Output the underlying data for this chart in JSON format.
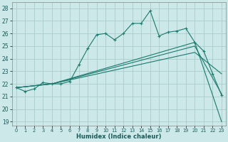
{
  "title": "",
  "xlabel": "Humidex (Indice chaleur)",
  "bg_color": "#cce8e8",
  "grid_color": "#aacccc",
  "line_color": "#1a7a6e",
  "xlim": [
    -0.5,
    23.5
  ],
  "ylim": [
    18.7,
    28.5
  ],
  "yticks": [
    19,
    20,
    21,
    22,
    23,
    24,
    25,
    26,
    27,
    28
  ],
  "xticks": [
    0,
    1,
    2,
    3,
    4,
    5,
    6,
    7,
    8,
    9,
    10,
    11,
    12,
    13,
    14,
    15,
    16,
    17,
    18,
    19,
    20,
    21,
    22,
    23
  ],
  "line1_x": [
    0,
    1,
    2,
    3,
    4,
    5,
    6,
    7,
    8,
    9,
    10,
    11,
    12,
    13,
    14,
    15,
    16,
    17,
    18,
    19,
    20,
    21,
    22,
    23
  ],
  "line1_y": [
    21.7,
    21.4,
    21.6,
    22.1,
    22.0,
    22.0,
    22.2,
    23.5,
    24.8,
    25.9,
    26.0,
    25.5,
    26.0,
    26.8,
    26.8,
    27.8,
    25.8,
    26.1,
    26.2,
    26.4,
    25.3,
    24.6,
    22.8,
    21.1
  ],
  "line2_x": [
    0,
    4,
    20,
    23
  ],
  "line2_y": [
    21.7,
    22.0,
    25.3,
    19.0
  ],
  "line3_x": [
    0,
    4,
    20,
    23
  ],
  "line3_y": [
    21.7,
    22.0,
    25.0,
    21.2
  ],
  "line4_x": [
    0,
    4,
    20,
    23
  ],
  "line4_y": [
    21.7,
    22.0,
    24.5,
    22.8
  ]
}
